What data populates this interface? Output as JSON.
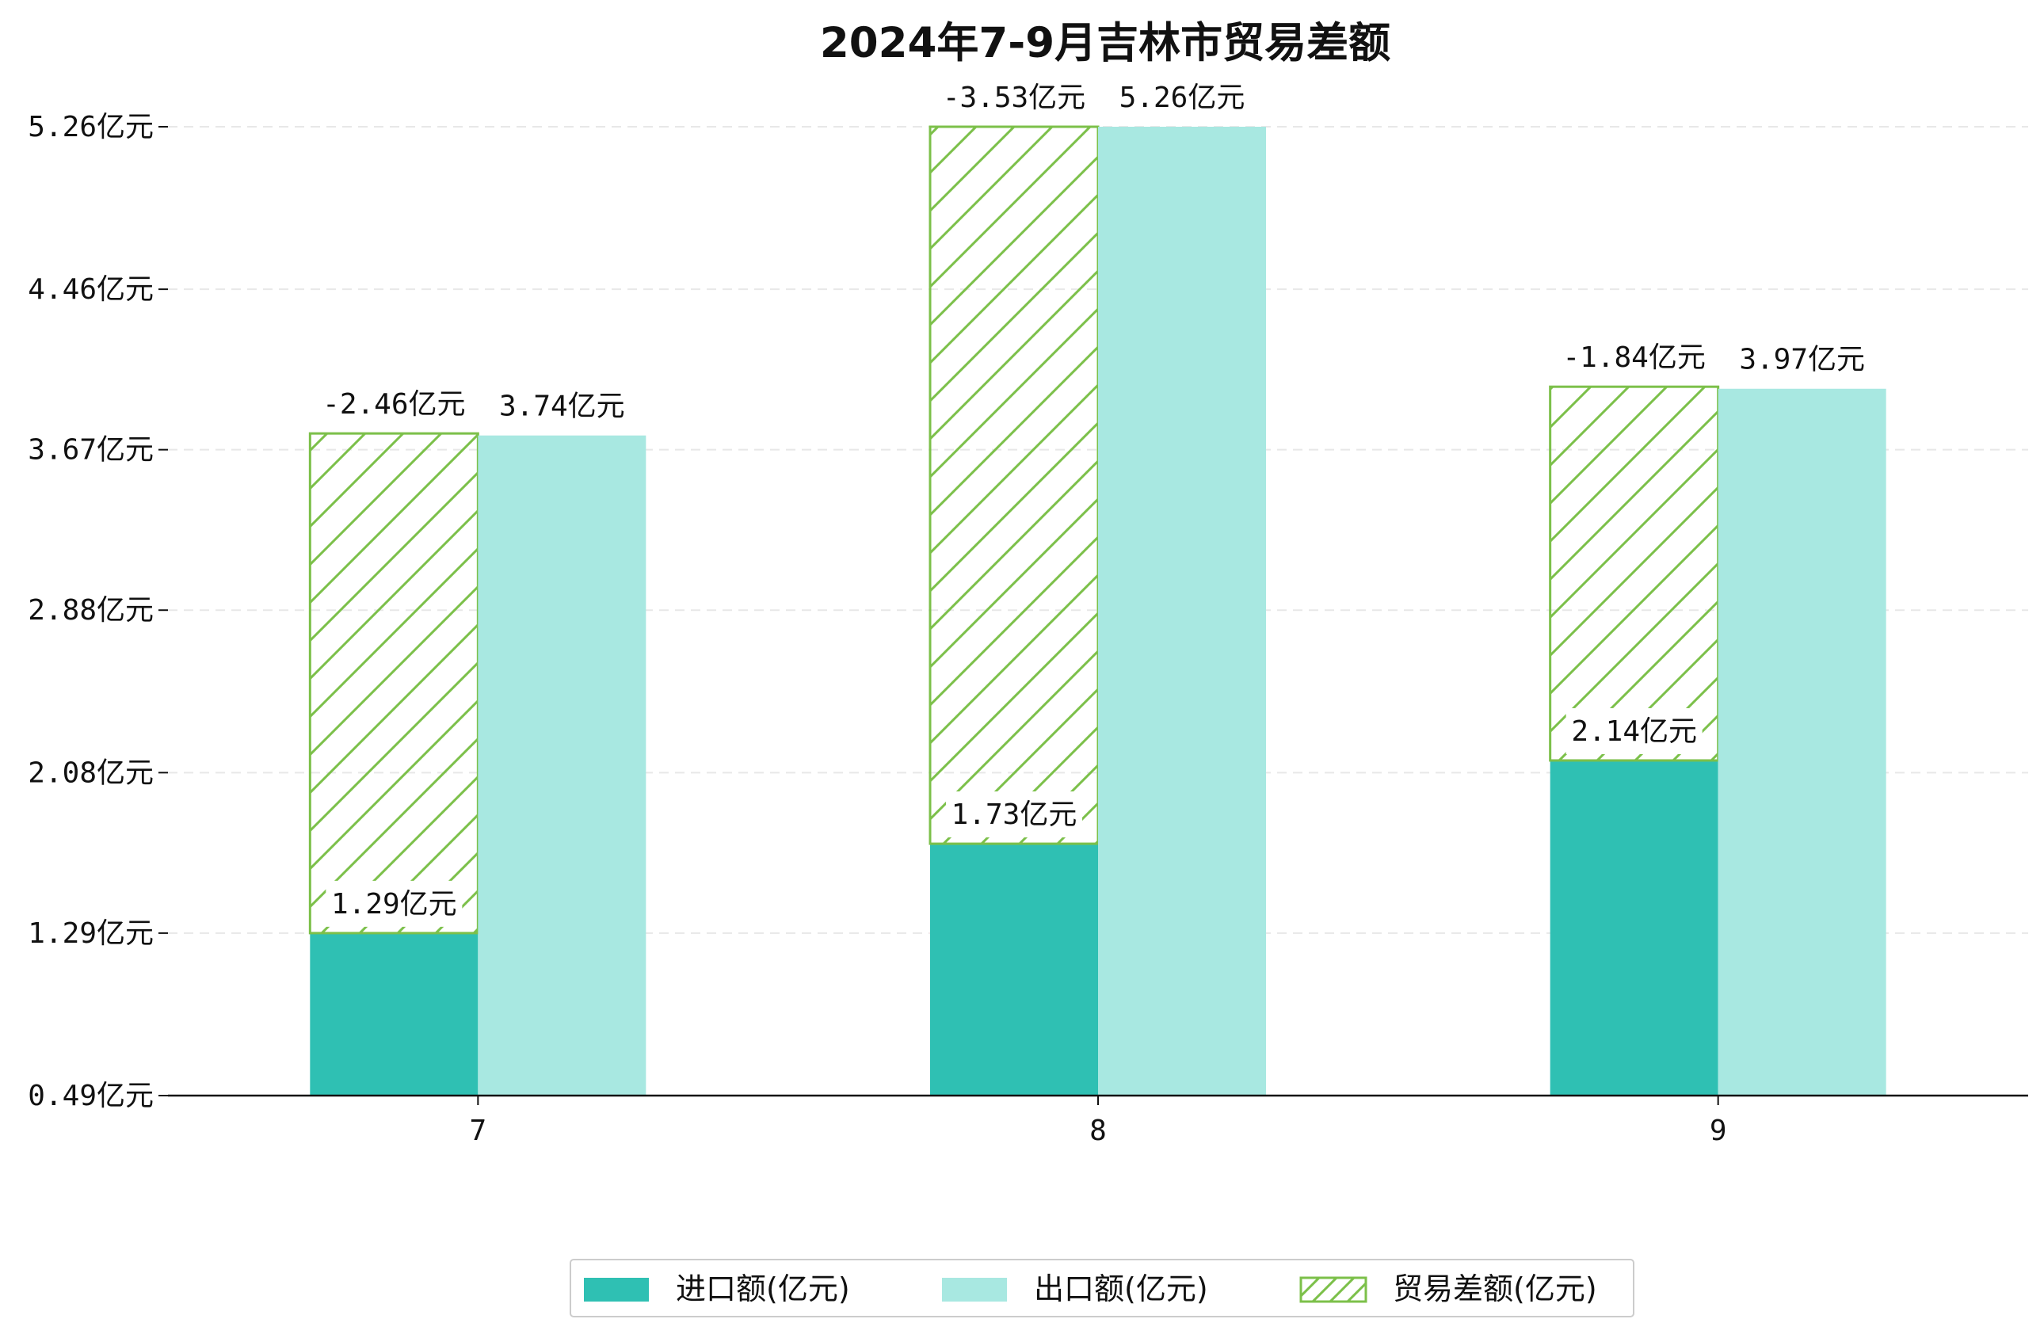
{
  "chart_data": {
    "type": "bar",
    "title": "2024年7-9月吉林市贸易差额",
    "categories": [
      "7",
      "8",
      "9"
    ],
    "series": [
      {
        "name": "进口额(亿元)",
        "values": [
          1.29,
          1.73,
          2.14
        ],
        "color": "#2fc0b3"
      },
      {
        "name": "出口额(亿元)",
        "values": [
          3.74,
          5.26,
          3.97
        ],
        "color": "#a8e8e1"
      },
      {
        "name": "贸易差额(亿元)",
        "values": [
          -2.46,
          -3.53,
          -1.84
        ],
        "color": "#7cc04a",
        "pattern": "hatch"
      }
    ],
    "data_labels": {
      "import": [
        "1.29亿元",
        "1.73亿元",
        "2.14亿元"
      ],
      "export": [
        "3.74亿元",
        "5.26亿元",
        "3.97亿元"
      ],
      "balance": [
        "-2.46亿元",
        "-3.53亿元",
        "-1.84亿元"
      ]
    },
    "ylim": [
      0.49,
      5.26
    ],
    "yticks": [
      0.49,
      1.29,
      2.08,
      2.88,
      3.67,
      4.46,
      5.26
    ],
    "ytick_labels": [
      "0.49亿元",
      "1.29亿元",
      "2.08亿元",
      "2.88亿元",
      "3.67亿元",
      "4.46亿元",
      "5.26亿元"
    ],
    "grid": true,
    "legend_position": "bottom-center"
  }
}
